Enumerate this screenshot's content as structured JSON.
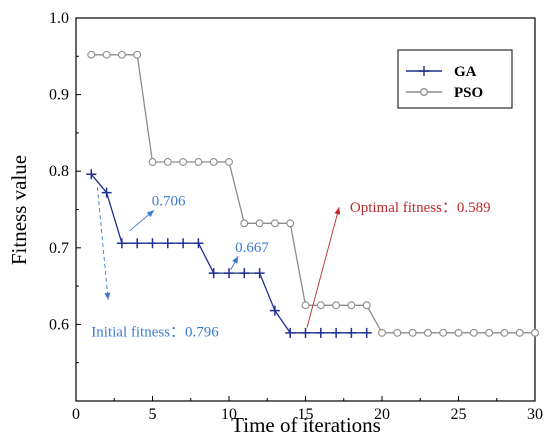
{
  "chart_data": {
    "type": "line",
    "xlabel": "Time of iterations",
    "ylabel": "Fitness value",
    "xlim": [
      0,
      30
    ],
    "ylim": [
      0.5,
      1.0
    ],
    "xticks": [
      "0",
      "5",
      "10",
      "15",
      "20",
      "25",
      "30"
    ],
    "yticks": [
      "0.6",
      "0.7",
      "0.8",
      "0.9",
      "1.0"
    ],
    "grid": false,
    "legend_position": "top-right",
    "series": [
      {
        "name": "GA",
        "color": "#1f2f8f",
        "marker": "plus",
        "x": [
          1,
          2,
          3,
          4,
          5,
          6,
          7,
          8,
          9,
          10,
          11,
          12,
          13,
          14,
          15,
          16,
          17,
          18,
          19
        ],
        "y": [
          0.796,
          0.772,
          0.706,
          0.706,
          0.706,
          0.706,
          0.706,
          0.706,
          0.667,
          0.667,
          0.667,
          0.667,
          0.618,
          0.589,
          0.589,
          0.589,
          0.589,
          0.589,
          0.589
        ]
      },
      {
        "name": "PSO",
        "color": "#8c8c8c",
        "marker": "circle",
        "x": [
          1,
          2,
          3,
          4,
          5,
          6,
          7,
          8,
          9,
          10,
          11,
          12,
          13,
          14,
          15,
          16,
          17,
          18,
          19,
          20,
          21,
          22,
          23,
          24,
          25,
          26,
          27,
          28,
          29,
          30
        ],
        "y": [
          0.952,
          0.952,
          0.952,
          0.952,
          0.812,
          0.812,
          0.812,
          0.812,
          0.812,
          0.812,
          0.732,
          0.732,
          0.732,
          0.732,
          0.625,
          0.625,
          0.625,
          0.625,
          0.625,
          0.589,
          0.589,
          0.589,
          0.589,
          0.589,
          0.589,
          0.589,
          0.589,
          0.589,
          0.589,
          0.589
        ]
      }
    ],
    "annotations": [
      {
        "text": "0.706",
        "color": "#3c7ad0",
        "label_at": [
          4.0,
          0.706
        ],
        "arrow_from": [
          3.5,
          0.722
        ],
        "arrow_to": [
          5.1,
          0.749
        ]
      },
      {
        "text": "0.667",
        "color": "#3c7ad0",
        "label_at": [
          10.2,
          0.667
        ],
        "arrow_from": [
          10.1,
          0.671
        ],
        "arrow_to": [
          10.6,
          0.689
        ]
      },
      {
        "text": "Optimal fitness：0.589",
        "color": "#c0282c",
        "label_at": [
          17.9,
          0.753
        ],
        "arrow_from": [
          15.1,
          0.596
        ],
        "arrow_to": [
          17.2,
          0.753
        ]
      },
      {
        "text": "Initial fitness：0.796",
        "color": "#3c7ad0",
        "label_at": [
          1.0,
          0.591
        ],
        "arrow_from": [
          1.4,
          0.779
        ],
        "arrow_to": [
          2.1,
          0.632
        ]
      }
    ]
  }
}
